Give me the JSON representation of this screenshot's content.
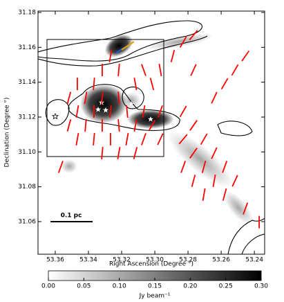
{
  "chart_data": {
    "type": "polarization_map",
    "xlabel": "Right Ascension (Degree °)",
    "ylabel": "Declination (Degree °)",
    "xlim": [
      53.3704,
      53.2338
    ],
    "ylim": [
      31.0413,
      31.1808
    ],
    "xticks": [
      53.36,
      53.34,
      53.32,
      {
        "value": 53.3,
        "label": "53.30"
      },
      53.28,
      53.26,
      53.24
    ],
    "yticks": [
      31.06,
      31.08,
      {
        "value": 31.1,
        "label": "31.10"
      },
      31.12,
      31.14,
      31.16,
      31.18
    ],
    "scale_bar": "0.1 pc",
    "vector_color": "#ff0000",
    "vectors": {
      "x": [
        53.3267,
        53.3217,
        53.3317,
        53.3367,
        53.3467,
        53.3417,
        53.3317,
        53.3217,
        53.3517,
        53.3117,
        53.3067,
        53.3017,
        53.2967,
        53.2892,
        53.2829,
        53.2767,
        53.3467,
        53.3367,
        53.3267,
        53.3167,
        53.3067,
        53.2967,
        53.3517,
        53.3417,
        53.3317,
        53.3217,
        53.3117,
        53.3017,
        53.3467,
        53.3367,
        53.3267,
        53.3167,
        53.3067,
        53.2967,
        53.3317,
        53.3217,
        53.3117,
        53.3567,
        53.2829,
        53.2767,
        53.2829,
        53.2704,
        53.2767,
        53.2642,
        53.2829,
        53.2704,
        53.2642,
        53.2579,
        53.2517,
        53.2767,
        53.2704,
        53.2579,
        53.2454,
        53.2579,
        53.2642,
        53.2371,
        53.2767,
        53.2454,
        53.2517
      ],
      "y": [
        31.155,
        31.147,
        31.147,
        31.139,
        31.139,
        31.131,
        31.131,
        31.131,
        31.131,
        31.139,
        31.147,
        31.139,
        31.147,
        31.155,
        31.163,
        31.167,
        31.1232,
        31.1232,
        31.1232,
        31.1232,
        31.1232,
        31.1232,
        31.1152,
        31.1152,
        31.1152,
        31.1152,
        31.1152,
        31.1152,
        31.1073,
        31.1073,
        31.1073,
        31.1073,
        31.1073,
        31.1073,
        31.0993,
        31.0993,
        31.0993,
        31.0914,
        31.1232,
        31.1152,
        31.1073,
        31.1073,
        31.0993,
        31.0993,
        31.0914,
        31.0914,
        31.0834,
        31.0914,
        31.0834,
        31.0834,
        31.0755,
        31.0755,
        31.0675,
        31.1391,
        31.1311,
        31.0597,
        31.147,
        31.155,
        31.147
      ],
      "angle": [
        10,
        5,
        0,
        5,
        0,
        10,
        5,
        -5,
        15,
        -10,
        -20,
        -15,
        -10,
        15,
        30,
        40,
        10,
        0,
        5,
        -5,
        10,
        20,
        15,
        5,
        0,
        -5,
        10,
        30,
        10,
        5,
        0,
        10,
        20,
        25,
        5,
        10,
        15,
        20,
        30,
        35,
        40,
        30,
        35,
        25,
        20,
        15,
        10,
        20,
        25,
        15,
        10,
        15,
        20,
        30,
        25,
        0,
        25,
        35,
        30
      ]
    },
    "colorbar": {
      "label": "Jy beam⁻¹",
      "clim": [
        0,
        0.3
      ],
      "ticks": [
        {
          "value": 0,
          "label": "0.00"
        },
        0.05,
        {
          "value": 0.1,
          "label": "0.10"
        },
        0.15,
        {
          "value": 0.2,
          "label": "0.20"
        },
        0.25,
        {
          "value": 0.3,
          "label": "0.30"
        }
      ]
    }
  }
}
